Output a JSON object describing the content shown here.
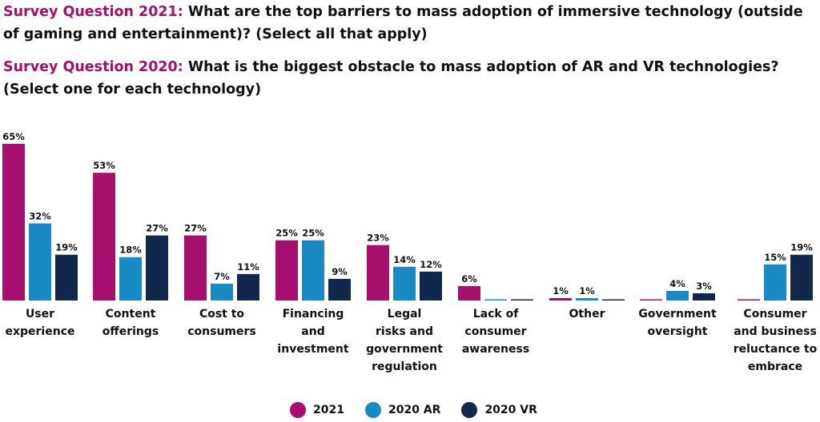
{
  "questions": {
    "q2021_prefix": "Survey Question 2021:",
    "q2021_text": " What are the top barriers to mass adoption of immersive technology (outside of gaming and entertainment)? (Select all that apply)",
    "q2020_prefix": "Survey Question 2020:",
    "q2020_text": " What is the biggest obstacle to mass adoption of AR and VR technologies? (Select one for each technology)"
  },
  "colors": {
    "accent": "#a5106e",
    "2021": "#a5106e",
    "2020_ar": "#1a8ac4",
    "2020_vr": "#13264b"
  },
  "chart_data": {
    "type": "bar",
    "categories": [
      [
        "User",
        "experience"
      ],
      [
        "Content",
        "offerings"
      ],
      [
        "Cost to",
        "consumers"
      ],
      [
        "Financing",
        "and",
        "investment"
      ],
      [
        "Legal",
        "risks and",
        "government",
        "regulation"
      ],
      [
        "Lack of",
        "consumer",
        "awareness"
      ],
      [
        "Other"
      ],
      [
        "Government",
        "oversight"
      ],
      [
        "Consumer",
        "and business",
        "reluctance to",
        "embrace"
      ]
    ],
    "series": [
      {
        "name": "2021",
        "values": [
          65,
          53,
          27,
          25,
          23,
          6,
          1,
          0,
          0
        ],
        "labels": [
          "65%",
          "53%",
          "27%",
          "25%",
          "23%",
          "6%",
          "1%",
          "",
          ""
        ]
      },
      {
        "name": "2020 AR",
        "values": [
          32,
          18,
          7,
          25,
          14,
          0,
          1,
          4,
          15
        ],
        "labels": [
          "32%",
          "18%",
          "7%",
          "25%",
          "14%",
          "",
          "1%",
          "4%",
          "15%"
        ]
      },
      {
        "name": "2020 VR",
        "values": [
          19,
          27,
          11,
          9,
          12,
          0,
          0,
          3,
          19
        ],
        "labels": [
          "19%",
          "27%",
          "11%",
          "9%",
          "12%",
          "",
          "",
          "3%",
          "19%"
        ]
      }
    ],
    "ylim": [
      0,
      65
    ]
  },
  "legend": [
    "2021",
    "2020 AR",
    "2020 VR"
  ]
}
